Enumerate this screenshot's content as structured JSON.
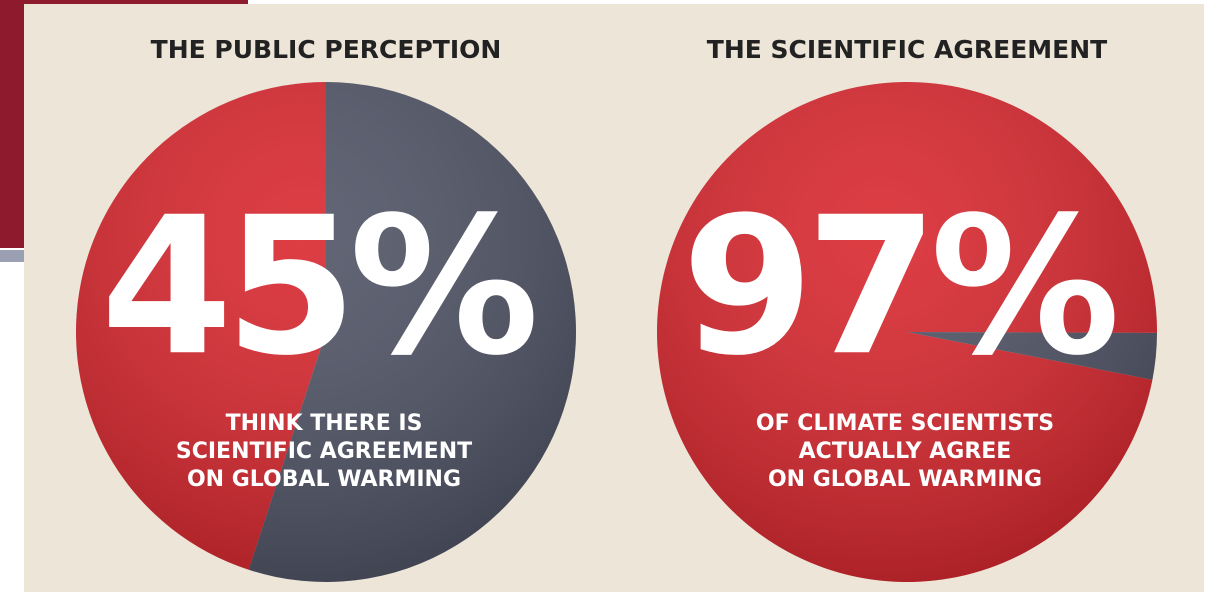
{
  "chart_data": [
    {
      "type": "pie",
      "title": "THE PUBLIC PERCEPTION",
      "categories": [
        null,
        null
      ],
      "values": [
        45,
        55
      ],
      "value_labels": [
        "45%",
        null
      ],
      "colors": [
        "#d8232a",
        "#4c5062"
      ],
      "caption": [
        "THINK THERE IS",
        "SCIENTIFIC AGREEMENT",
        "ON GLOBAL WARMING"
      ]
    },
    {
      "type": "pie",
      "title": "THE SCIENTIFIC AGREEMENT",
      "categories": [
        null,
        null
      ],
      "values": [
        97,
        3
      ],
      "value_labels": [
        "97%",
        null
      ],
      "colors": [
        "#d8232a",
        "#4c5062"
      ],
      "caption": [
        "OF CLIMATE SCIENTISTS",
        "ACTUALLY AGREE",
        "ON GLOBAL WARMING"
      ]
    }
  ]
}
